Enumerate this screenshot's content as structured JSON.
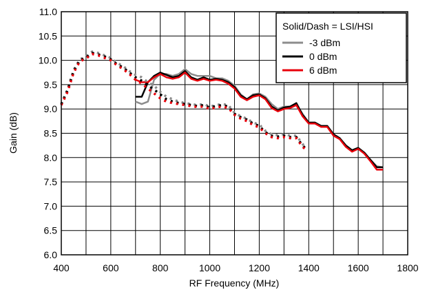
{
  "chart_data": {
    "type": "line",
    "title": "",
    "xlabel": "RF Frequency (MHz)",
    "ylabel": "Gain (dB)",
    "xlim": [
      400,
      1800
    ],
    "ylim": [
      6.0,
      11.0
    ],
    "x_ticks": [
      "400",
      "600",
      "800",
      "1000",
      "1200",
      "1400",
      "1600",
      "1800"
    ],
    "y_ticks": [
      "6.0",
      "6.5",
      "7.0",
      "7.5",
      "8.0",
      "8.5",
      "9.0",
      "9.5",
      "10.0",
      "10.5",
      "11.0"
    ],
    "grid": true,
    "legend": {
      "title": "Solid/Dash = LSI/HSI",
      "placement": "top-right",
      "entries": [
        "-3 dBm",
        "0 dBm",
        "6 dBm"
      ]
    },
    "series": [
      {
        "name": "-3 dBm",
        "side": "LSI",
        "style": "solid",
        "color": "#8c8c8c",
        "points": [
          [
            700,
            9.15
          ],
          [
            725,
            9.1
          ],
          [
            750,
            9.15
          ],
          [
            775,
            9.6
          ],
          [
            800,
            9.72
          ],
          [
            825,
            9.72
          ],
          [
            850,
            9.68
          ],
          [
            875,
            9.72
          ],
          [
            900,
            9.82
          ],
          [
            925,
            9.72
          ],
          [
            950,
            9.68
          ],
          [
            975,
            9.68
          ],
          [
            1000,
            9.68
          ],
          [
            1025,
            9.63
          ],
          [
            1050,
            9.63
          ],
          [
            1075,
            9.58
          ],
          [
            1100,
            9.48
          ],
          [
            1125,
            9.3
          ],
          [
            1150,
            9.2
          ],
          [
            1175,
            9.3
          ],
          [
            1200,
            9.32
          ],
          [
            1225,
            9.25
          ],
          [
            1250,
            9.1
          ],
          [
            1275,
            9.0
          ],
          [
            1300,
            9.05
          ],
          [
            1325,
            9.05
          ],
          [
            1350,
            9.1
          ],
          [
            1375,
            8.9
          ],
          [
            1400,
            8.72
          ],
          [
            1425,
            8.72
          ],
          [
            1450,
            8.65
          ],
          [
            1475,
            8.65
          ],
          [
            1500,
            8.48
          ],
          [
            1525,
            8.4
          ],
          [
            1550,
            8.25
          ],
          [
            1575,
            8.15
          ],
          [
            1600,
            8.2
          ],
          [
            1625,
            8.1
          ],
          [
            1650,
            7.95
          ],
          [
            1675,
            7.82
          ],
          [
            1700,
            7.8
          ]
        ]
      },
      {
        "name": "0 dBm",
        "side": "LSI",
        "style": "solid",
        "color": "#000000",
        "points": [
          [
            700,
            9.25
          ],
          [
            725,
            9.25
          ],
          [
            750,
            9.55
          ],
          [
            775,
            9.68
          ],
          [
            800,
            9.75
          ],
          [
            825,
            9.7
          ],
          [
            850,
            9.65
          ],
          [
            875,
            9.68
          ],
          [
            900,
            9.78
          ],
          [
            925,
            9.65
          ],
          [
            950,
            9.6
          ],
          [
            975,
            9.65
          ],
          [
            1000,
            9.6
          ],
          [
            1025,
            9.62
          ],
          [
            1050,
            9.6
          ],
          [
            1075,
            9.55
          ],
          [
            1100,
            9.45
          ],
          [
            1125,
            9.28
          ],
          [
            1150,
            9.2
          ],
          [
            1175,
            9.28
          ],
          [
            1200,
            9.3
          ],
          [
            1225,
            9.22
          ],
          [
            1250,
            9.05
          ],
          [
            1275,
            8.97
          ],
          [
            1300,
            9.03
          ],
          [
            1325,
            9.05
          ],
          [
            1350,
            9.12
          ],
          [
            1375,
            8.88
          ],
          [
            1400,
            8.72
          ],
          [
            1425,
            8.72
          ],
          [
            1450,
            8.65
          ],
          [
            1475,
            8.65
          ],
          [
            1500,
            8.48
          ],
          [
            1525,
            8.4
          ],
          [
            1550,
            8.25
          ],
          [
            1575,
            8.15
          ],
          [
            1600,
            8.2
          ],
          [
            1625,
            8.1
          ],
          [
            1650,
            7.95
          ],
          [
            1675,
            7.8
          ],
          [
            1700,
            7.8
          ]
        ]
      },
      {
        "name": "6 dBm",
        "side": "LSI",
        "style": "solid",
        "color": "#e8000b",
        "points": [
          [
            700,
            9.6
          ],
          [
            725,
            9.55
          ],
          [
            750,
            9.55
          ],
          [
            775,
            9.65
          ],
          [
            800,
            9.72
          ],
          [
            825,
            9.65
          ],
          [
            850,
            9.62
          ],
          [
            875,
            9.65
          ],
          [
            900,
            9.75
          ],
          [
            925,
            9.62
          ],
          [
            950,
            9.58
          ],
          [
            975,
            9.62
          ],
          [
            1000,
            9.58
          ],
          [
            1025,
            9.6
          ],
          [
            1050,
            9.58
          ],
          [
            1075,
            9.52
          ],
          [
            1100,
            9.42
          ],
          [
            1125,
            9.25
          ],
          [
            1150,
            9.18
          ],
          [
            1175,
            9.25
          ],
          [
            1200,
            9.28
          ],
          [
            1225,
            9.2
          ],
          [
            1250,
            9.02
          ],
          [
            1275,
            8.95
          ],
          [
            1300,
            9.0
          ],
          [
            1325,
            9.02
          ],
          [
            1350,
            9.08
          ],
          [
            1375,
            8.85
          ],
          [
            1400,
            8.7
          ],
          [
            1425,
            8.7
          ],
          [
            1450,
            8.63
          ],
          [
            1475,
            8.63
          ],
          [
            1500,
            8.45
          ],
          [
            1525,
            8.38
          ],
          [
            1550,
            8.22
          ],
          [
            1575,
            8.12
          ],
          [
            1600,
            8.18
          ],
          [
            1625,
            8.08
          ],
          [
            1650,
            7.92
          ],
          [
            1675,
            7.75
          ],
          [
            1700,
            7.75
          ]
        ]
      },
      {
        "name": "-3 dBm",
        "side": "HSI",
        "style": "dash",
        "color": "#8c8c8c",
        "points": [
          [
            400,
            9.1
          ],
          [
            425,
            9.4
          ],
          [
            450,
            9.8
          ],
          [
            475,
            10.02
          ],
          [
            500,
            10.08
          ],
          [
            525,
            10.18
          ],
          [
            550,
            10.15
          ],
          [
            575,
            10.1
          ],
          [
            600,
            10.05
          ],
          [
            625,
            9.95
          ],
          [
            650,
            9.88
          ],
          [
            675,
            9.78
          ],
          [
            700,
            9.7
          ],
          [
            725,
            9.65
          ],
          [
            750,
            9.55
          ],
          [
            775,
            9.48
          ],
          [
            800,
            9.35
          ],
          [
            825,
            9.25
          ],
          [
            850,
            9.2
          ],
          [
            875,
            9.15
          ],
          [
            900,
            9.12
          ],
          [
            925,
            9.1
          ],
          [
            950,
            9.08
          ],
          [
            975,
            9.1
          ],
          [
            1000,
            9.05
          ],
          [
            1025,
            9.08
          ],
          [
            1050,
            9.1
          ],
          [
            1075,
            9.08
          ],
          [
            1100,
            8.92
          ],
          [
            1125,
            8.85
          ],
          [
            1150,
            8.8
          ],
          [
            1175,
            8.72
          ],
          [
            1200,
            8.68
          ],
          [
            1225,
            8.55
          ],
          [
            1250,
            8.48
          ],
          [
            1275,
            8.46
          ],
          [
            1300,
            8.48
          ],
          [
            1325,
            8.45
          ],
          [
            1350,
            8.45
          ],
          [
            1375,
            8.28
          ],
          [
            1385,
            8.22
          ]
        ]
      },
      {
        "name": "0 dBm",
        "side": "HSI",
        "style": "dash",
        "color": "#000000",
        "points": [
          [
            400,
            9.1
          ],
          [
            425,
            9.38
          ],
          [
            450,
            9.78
          ],
          [
            475,
            10.0
          ],
          [
            500,
            10.06
          ],
          [
            525,
            10.15
          ],
          [
            550,
            10.12
          ],
          [
            575,
            10.08
          ],
          [
            600,
            10.02
          ],
          [
            625,
            9.92
          ],
          [
            650,
            9.85
          ],
          [
            675,
            9.75
          ],
          [
            700,
            9.65
          ],
          [
            725,
            9.58
          ],
          [
            750,
            9.48
          ],
          [
            775,
            9.4
          ],
          [
            800,
            9.3
          ],
          [
            825,
            9.2
          ],
          [
            850,
            9.15
          ],
          [
            875,
            9.12
          ],
          [
            900,
            9.1
          ],
          [
            925,
            9.08
          ],
          [
            950,
            9.06
          ],
          [
            975,
            9.08
          ],
          [
            1000,
            9.03
          ],
          [
            1025,
            9.06
          ],
          [
            1050,
            9.08
          ],
          [
            1075,
            9.05
          ],
          [
            1100,
            8.9
          ],
          [
            1125,
            8.83
          ],
          [
            1150,
            8.78
          ],
          [
            1175,
            8.7
          ],
          [
            1200,
            8.65
          ],
          [
            1225,
            8.52
          ],
          [
            1250,
            8.45
          ],
          [
            1275,
            8.43
          ],
          [
            1300,
            8.45
          ],
          [
            1325,
            8.42
          ],
          [
            1350,
            8.42
          ],
          [
            1375,
            8.25
          ],
          [
            1385,
            8.2
          ]
        ]
      },
      {
        "name": "6 dBm",
        "side": "HSI",
        "style": "dash",
        "color": "#e8000b",
        "points": [
          [
            400,
            9.08
          ],
          [
            425,
            9.35
          ],
          [
            450,
            9.75
          ],
          [
            475,
            9.98
          ],
          [
            500,
            10.04
          ],
          [
            525,
            10.13
          ],
          [
            550,
            10.1
          ],
          [
            575,
            10.05
          ],
          [
            600,
            10.0
          ],
          [
            625,
            9.9
          ],
          [
            650,
            9.82
          ],
          [
            675,
            9.72
          ],
          [
            700,
            9.6
          ],
          [
            725,
            9.52
          ],
          [
            750,
            9.42
          ],
          [
            775,
            9.32
          ],
          [
            800,
            9.22
          ],
          [
            825,
            9.15
          ],
          [
            850,
            9.12
          ],
          [
            875,
            9.1
          ],
          [
            900,
            9.08
          ],
          [
            925,
            9.06
          ],
          [
            950,
            9.04
          ],
          [
            975,
            9.05
          ],
          [
            1000,
            9.0
          ],
          [
            1025,
            9.03
          ],
          [
            1050,
            9.05
          ],
          [
            1075,
            9.02
          ],
          [
            1100,
            8.88
          ],
          [
            1125,
            8.8
          ],
          [
            1150,
            8.75
          ],
          [
            1175,
            8.67
          ],
          [
            1200,
            8.62
          ],
          [
            1225,
            8.5
          ],
          [
            1250,
            8.42
          ],
          [
            1275,
            8.4
          ],
          [
            1300,
            8.42
          ],
          [
            1325,
            8.4
          ],
          [
            1350,
            8.4
          ],
          [
            1375,
            8.22
          ],
          [
            1385,
            8.18
          ]
        ]
      }
    ]
  }
}
